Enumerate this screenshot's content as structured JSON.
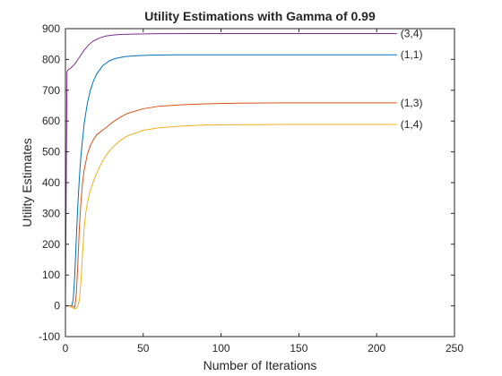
{
  "chart_data": {
    "type": "line",
    "title": "Utility Estimations with Gamma of 0.99",
    "xlabel": "Number of Iterations",
    "ylabel": "Utility Estimates",
    "xlim": [
      0,
      250
    ],
    "ylim": [
      -100,
      900
    ],
    "xticks": [
      0,
      50,
      100,
      150,
      200,
      250
    ],
    "yticks": [
      -100,
      0,
      100,
      200,
      300,
      400,
      500,
      600,
      700,
      800,
      900
    ],
    "grid": false,
    "legend": "none",
    "series": [
      {
        "name": "(3,4)",
        "color": "#7E2F8E",
        "x": [
          0,
          1,
          2,
          3,
          4,
          6,
          8,
          10,
          12,
          15,
          18,
          22,
          26,
          30,
          35,
          40,
          50,
          60,
          80,
          100,
          130,
          160,
          190,
          213
        ],
        "y": [
          0,
          760,
          768,
          770,
          775,
          785,
          800,
          815,
          830,
          848,
          860,
          870,
          876,
          879,
          881,
          882,
          883,
          883.5,
          884,
          884,
          884,
          884,
          884,
          884
        ]
      },
      {
        "name": "(1,1)",
        "color": "#0072BD",
        "x": [
          0,
          1,
          2,
          3,
          4,
          5,
          6,
          7,
          8,
          9,
          10,
          12,
          14,
          16,
          18,
          20,
          24,
          28,
          32,
          38,
          45,
          55,
          70,
          90,
          120,
          160,
          213
        ],
        "y": [
          0,
          0,
          0,
          0,
          0,
          20,
          100,
          220,
          330,
          420,
          490,
          590,
          655,
          700,
          730,
          752,
          780,
          795,
          803,
          809,
          812,
          814,
          815,
          815,
          815,
          815,
          815
        ]
      },
      {
        "name": "(1,3)",
        "color": "#D95319",
        "x": [
          0,
          2,
          4,
          6,
          7,
          8,
          9,
          10,
          11,
          12,
          14,
          16,
          18,
          20,
          23,
          26,
          30,
          35,
          40,
          50,
          60,
          75,
          90,
          110,
          140,
          170,
          213
        ],
        "y": [
          0,
          0,
          0,
          -5,
          40,
          140,
          260,
          340,
          400,
          440,
          490,
          520,
          540,
          555,
          567,
          578,
          595,
          612,
          625,
          640,
          648,
          653,
          656,
          658,
          659,
          659,
          659
        ]
      },
      {
        "name": "(1,4)",
        "color": "#EDB120",
        "x": [
          0,
          2,
          4,
          6,
          7,
          8,
          9,
          10,
          11,
          12,
          13,
          14,
          15,
          16,
          18,
          20,
          23,
          26,
          30,
          35,
          40,
          50,
          60,
          75,
          90,
          110,
          140,
          170,
          213
        ],
        "y": [
          0,
          0,
          -5,
          -10,
          -8,
          0,
          20,
          80,
          170,
          250,
          300,
          330,
          355,
          375,
          405,
          430,
          462,
          488,
          513,
          536,
          552,
          570,
          578,
          584,
          587,
          588,
          589,
          589,
          589
        ]
      }
    ]
  }
}
